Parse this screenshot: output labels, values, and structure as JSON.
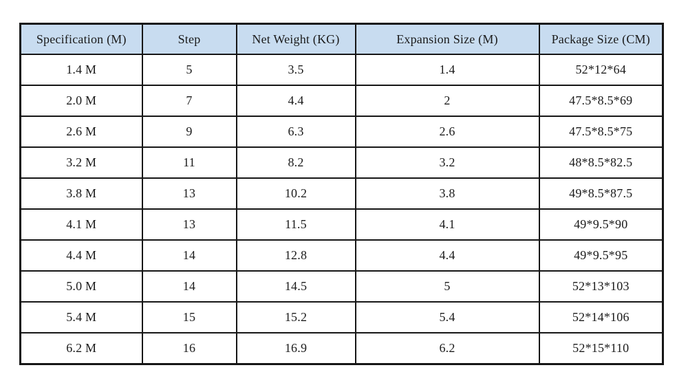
{
  "table": {
    "columns": [
      {
        "key": "specification",
        "label": "Specification (M)"
      },
      {
        "key": "step",
        "label": "Step"
      },
      {
        "key": "net_weight",
        "label": "Net Weight (KG)"
      },
      {
        "key": "expansion_size",
        "label": "Expansion Size (M)"
      },
      {
        "key": "package_size",
        "label": "Package Size (CM)"
      }
    ],
    "rows": [
      [
        "1.4 M",
        "5",
        "3.5",
        "1.4",
        "52*12*64"
      ],
      [
        "2.0 M",
        "7",
        "4.4",
        "2",
        "47.5*8.5*69"
      ],
      [
        "2.6 M",
        "9",
        "6.3",
        "2.6",
        "47.5*8.5*75"
      ],
      [
        "3.2 M",
        "11",
        "8.2",
        "3.2",
        "48*8.5*82.5"
      ],
      [
        "3.8 M",
        "13",
        "10.2",
        "3.8",
        "49*8.5*87.5"
      ],
      [
        "4.1 M",
        "13",
        "11.5",
        "4.1",
        "49*9.5*90"
      ],
      [
        "4.4 M",
        "14",
        "12.8",
        "4.4",
        "49*9.5*95"
      ],
      [
        "5.0 M",
        "14",
        "14.5",
        "5",
        "52*13*103"
      ],
      [
        "5.4 M",
        "15",
        "15.2",
        "5.4",
        "52*14*106"
      ],
      [
        "6.2 M",
        "16",
        "16.9",
        "6.2",
        "52*15*110"
      ]
    ]
  },
  "colors": {
    "header_background": "#c8dcf0",
    "border": "#161616",
    "text": "#1b1b1b",
    "page_background": "#ffffff"
  }
}
